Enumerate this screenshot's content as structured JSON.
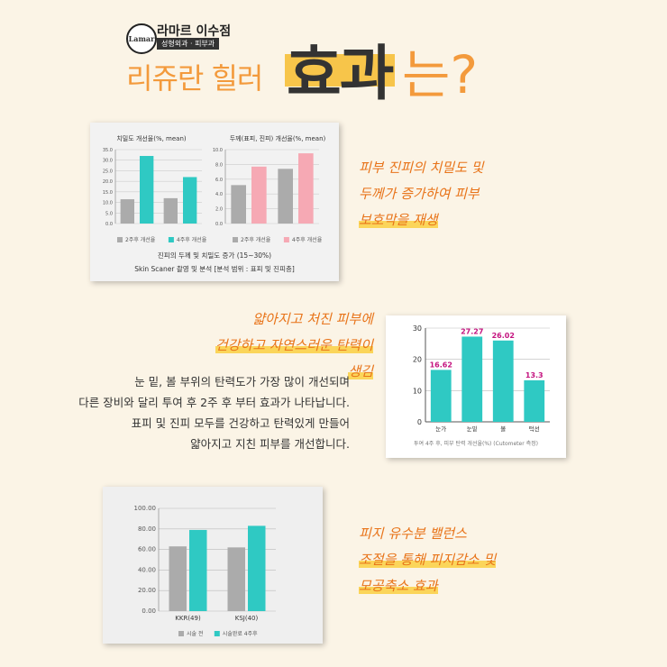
{
  "header": {
    "logo_text": "Lamar",
    "clinic_name": "라마르 이수점",
    "clinic_sub": "성형외과 · 피부과",
    "headline_a": "리쥬란 힐러",
    "headline_b": "효과",
    "headline_c": "는?"
  },
  "colors": {
    "gray": "#ababab",
    "teal": "#2fc9c3",
    "pink": "#f6a9b4",
    "orange": "#e8741a",
    "highlight": "#fbd55a"
  },
  "card1": {
    "caption_1": "진피의 두께 및 치밀도 증가 (15~30%)",
    "caption_2": "Skin Scaner 촬영 및 분석 [분석 범위 : 표피 및 진피층]"
  },
  "notes": {
    "note1": [
      "피부 진피의 치밀도 및",
      "두께가 증가하여 피부",
      "보호막을 재생"
    ],
    "note2": [
      "얇아지고 처진 피부에",
      "건강하고 자연스러운 탄력이 생김"
    ],
    "note3": [
      "피지 유수분 밸런스",
      "조절을 통해 피지감소 및",
      "모공축소 효과"
    ]
  },
  "body_text": [
    "눈 밑, 볼 부위의 탄력도가 가장 많이 개선되며",
    "다른 장비와 달리 투여 후 2주 후 부터 효과가 나타납니다.",
    "표피 및 진피 모두를 건강하고 탄력있게 만들어",
    "얇아지고 지친 피부를 개선합니다."
  ],
  "chart_data": [
    {
      "type": "bar",
      "title": "치밀도 개선율(%, mean)",
      "categories": [
        "",
        ""
      ],
      "series": [
        {
          "name": "2주후 개선율",
          "values": [
            11.5,
            12
          ],
          "color": "#ababab"
        },
        {
          "name": "4주후 개선율",
          "values": [
            32,
            22
          ],
          "color": "#2fc9c3"
        }
      ],
      "ylim": [
        0,
        35
      ],
      "yticks": [
        "0.0",
        "5.0",
        "10.0",
        "15.0",
        "20.0",
        "25.0",
        "30.0",
        "35.0"
      ],
      "legend": "bottom"
    },
    {
      "type": "bar",
      "title": "두께(표피, 진피) 개선율(%, mean)",
      "categories": [
        "",
        ""
      ],
      "series": [
        {
          "name": "2주후 개선율",
          "values": [
            5.2,
            7.4
          ],
          "color": "#ababab"
        },
        {
          "name": "4주후 개선율",
          "values": [
            7.7,
            9.5
          ],
          "color": "#f6a9b4"
        }
      ],
      "ylim": [
        0,
        10
      ],
      "yticks": [
        "0.0",
        "2.0",
        "4.0",
        "6.0",
        "8.0",
        "10.0"
      ],
      "legend": "bottom"
    },
    {
      "type": "bar",
      "categories": [
        "눈가",
        "눈밑",
        "볼",
        "턱선"
      ],
      "values": [
        16.62,
        27.27,
        26.02,
        13.3
      ],
      "value_labels": [
        "16.62",
        "27.27",
        "26.02",
        "13.3"
      ],
      "ylim": [
        0,
        30
      ],
      "yticks": [
        "0",
        "10",
        "20",
        "30"
      ],
      "xlabel": "투여 4주 후, 피부 탄력 개선율(%) (Cutometer 측정)",
      "color": "#2fc9c3"
    },
    {
      "type": "bar",
      "categories": [
        "KKR(49)",
        "KSJ(40)"
      ],
      "series": [
        {
          "name": "시술 전",
          "values": [
            63,
            62
          ],
          "color": "#ababab"
        },
        {
          "name": "시술완료 4주후",
          "values": [
            79,
            83
          ],
          "color": "#2fc9c3"
        }
      ],
      "ylim": [
        0,
        100
      ],
      "yticks": [
        "0.00",
        "20.00",
        "40.00",
        "60.00",
        "80.00",
        "100.00"
      ],
      "legend": "bottom"
    }
  ]
}
